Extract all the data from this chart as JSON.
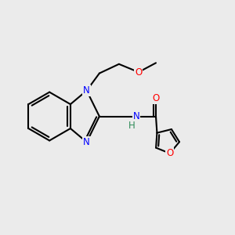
{
  "bg_color": "#ebebeb",
  "bond_color": "#000000",
  "N_color": "#0000ff",
  "O_color": "#ff0000",
  "NH_N_color": "#0000ff",
  "NH_H_color": "#2e8b57",
  "line_width": 1.5,
  "figsize": [
    3.0,
    3.0
  ],
  "dpi": 100,
  "xlim": [
    0,
    10
  ],
  "ylim": [
    0,
    10
  ],
  "font_size": 8.5
}
